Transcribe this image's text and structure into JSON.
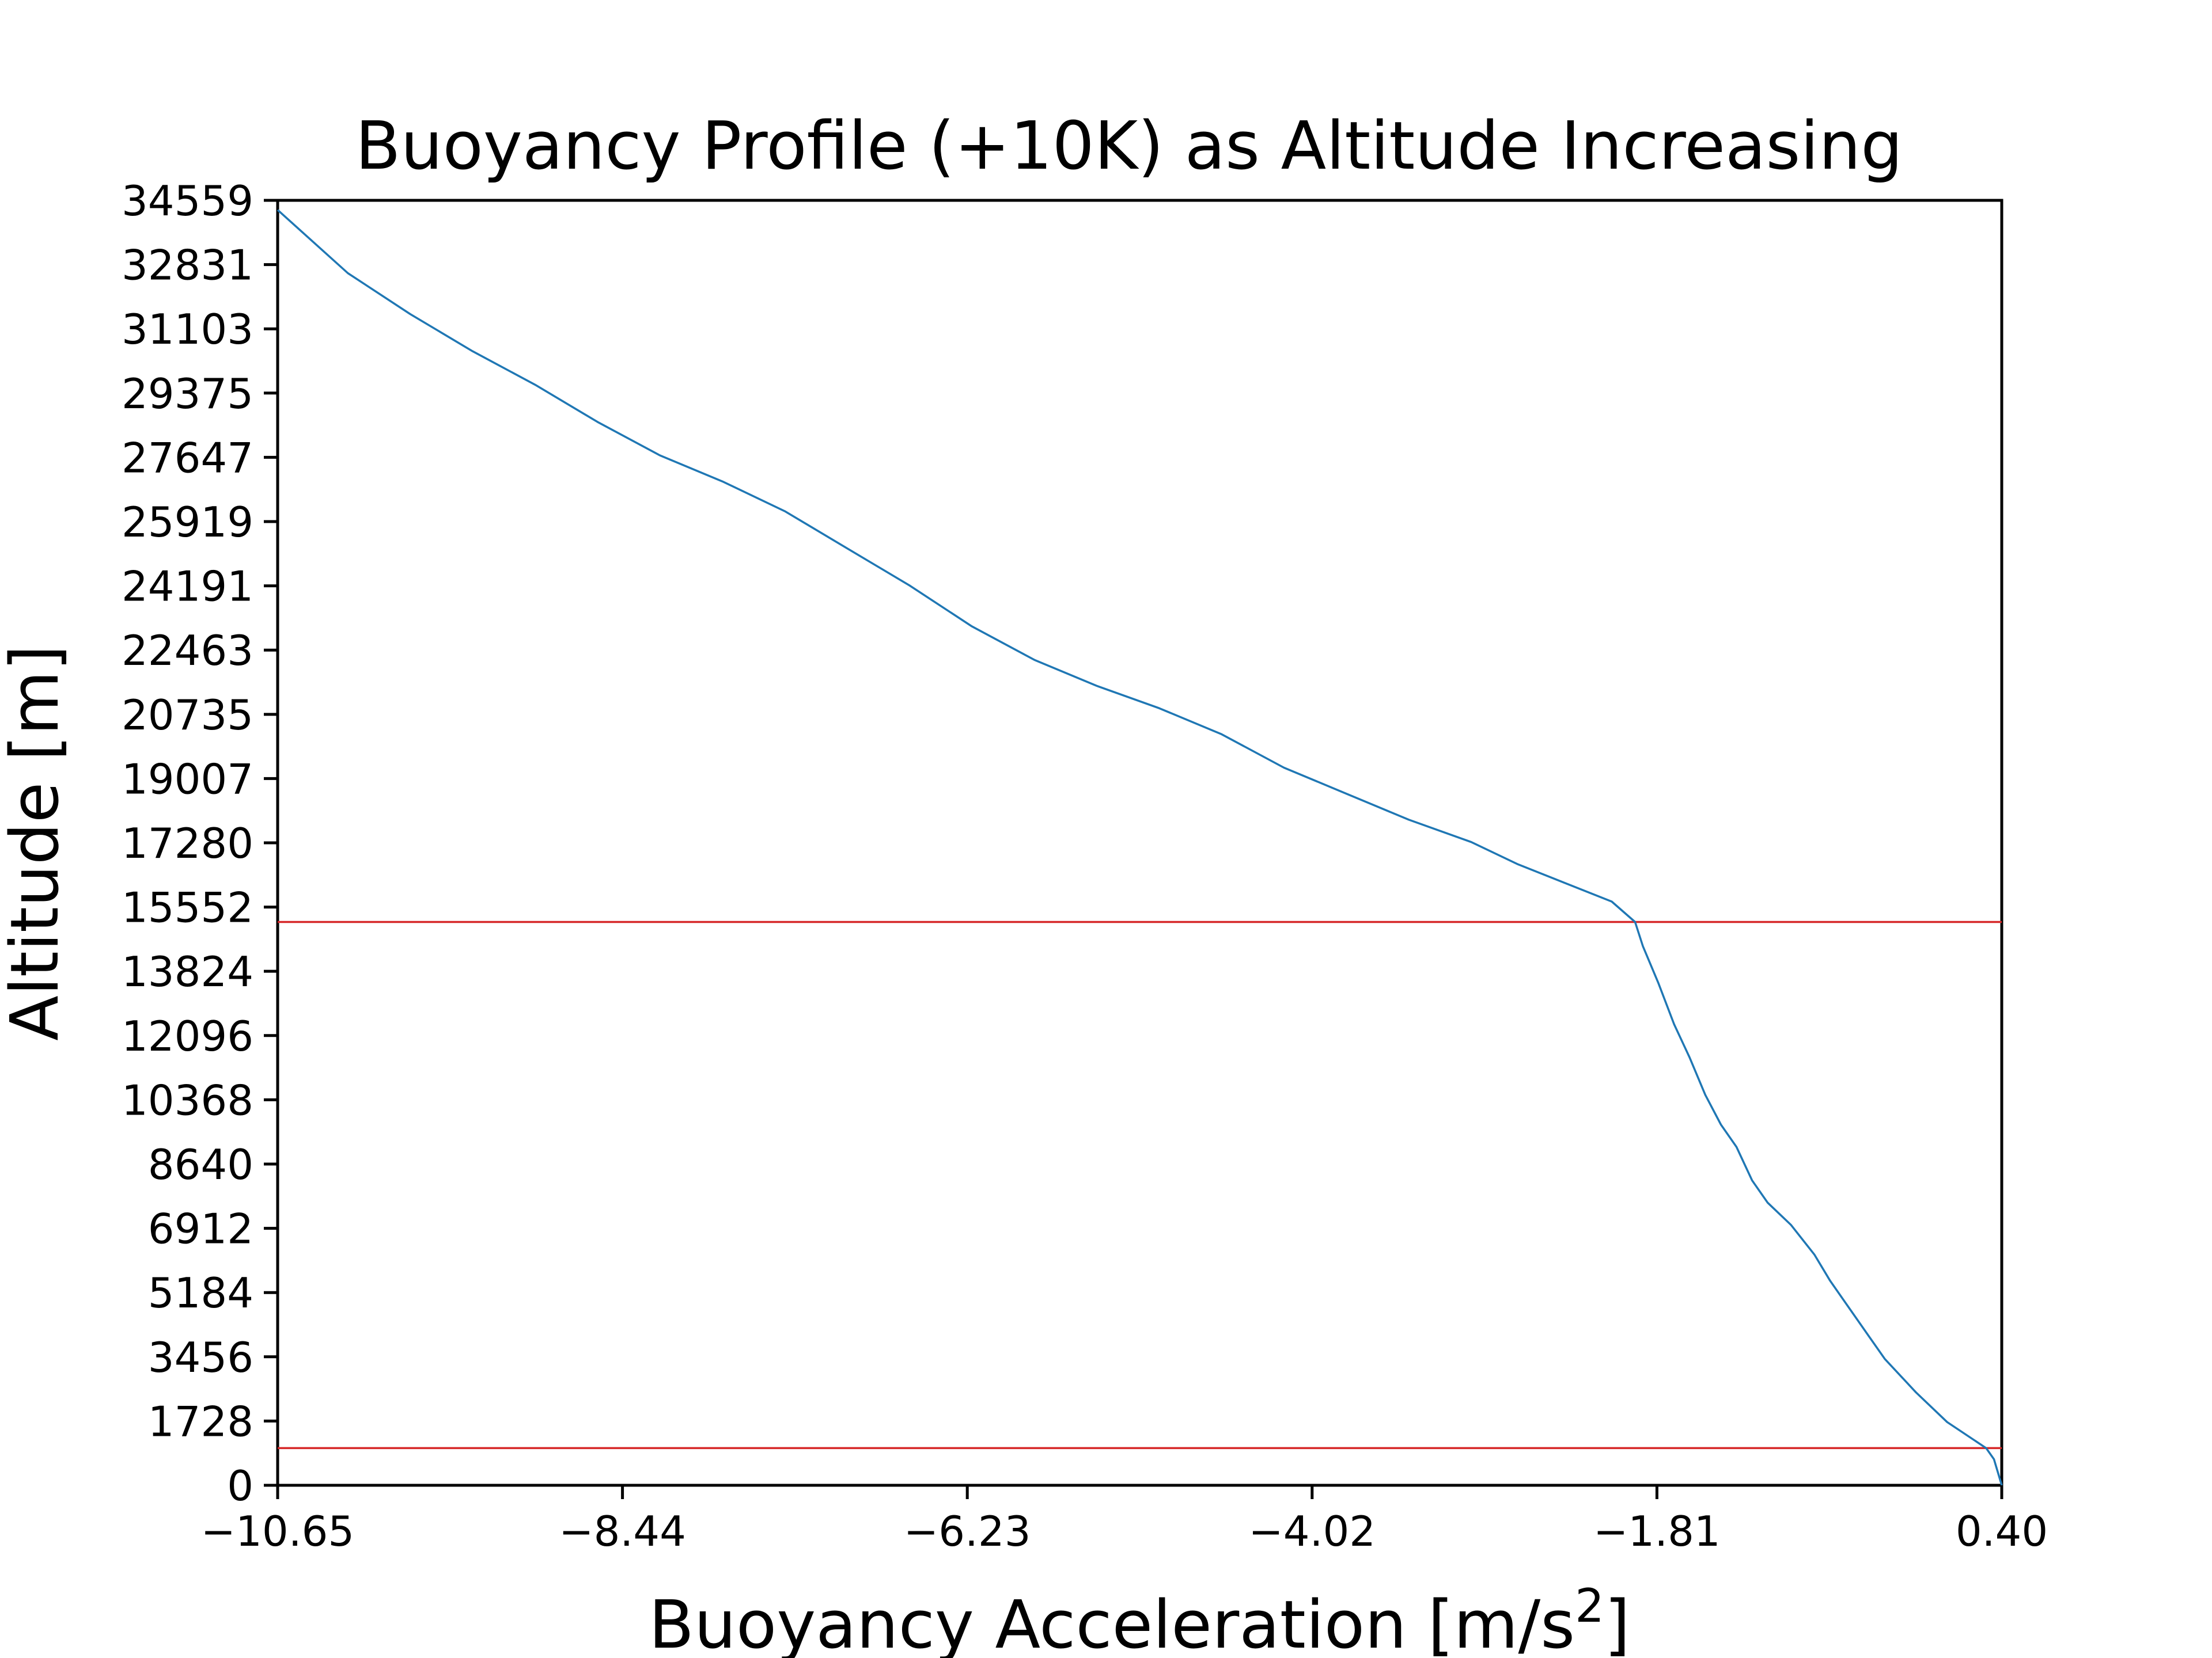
{
  "chart_data": {
    "type": "line",
    "title": "Buoyancy Profile (+10K) as Altitude Increasing",
    "xlabel": "Buoyancy Acceleration [m/s",
    "xlabel_superscript": "2",
    "xlabel_suffix": "]",
    "ylabel": "Altitude [m]",
    "xlim": [
      -10.65,
      0.4
    ],
    "ylim": [
      0,
      34559
    ],
    "xticks": [
      -10.65,
      -8.44,
      -6.23,
      -4.02,
      -1.81,
      0.4
    ],
    "xtick_labels": [
      "−10.65",
      "−8.44",
      "−6.23",
      "−4.02",
      "−1.81",
      "0.40"
    ],
    "yticks": [
      0,
      1728,
      3456,
      5184,
      6912,
      8640,
      10368,
      12096,
      13824,
      15552,
      17280,
      19007,
      20735,
      22463,
      24191,
      25919,
      27647,
      29375,
      31103,
      32831,
      34559
    ],
    "ytick_labels": [
      "0",
      "1728",
      "3456",
      "5184",
      "6912",
      "8640",
      "10368",
      "12096",
      "13824",
      "15552",
      "17280",
      "19007",
      "20735",
      "22463",
      "24191",
      "25919",
      "27647",
      "29375",
      "31103",
      "32831",
      "34559"
    ],
    "hlines": [
      {
        "y": 15150,
        "color": "#d62728"
      },
      {
        "y": 1000,
        "color": "#d62728"
      }
    ],
    "series": [
      {
        "color": "#1f77b4",
        "points": [
          [
            0.4,
            0
          ],
          [
            0.35,
            700
          ],
          [
            0.3,
            1000
          ],
          [
            0.05,
            1700
          ],
          [
            -0.15,
            2500
          ],
          [
            -0.35,
            3400
          ],
          [
            -0.45,
            4000
          ],
          [
            -0.6,
            4900
          ],
          [
            -0.7,
            5500
          ],
          [
            -0.8,
            6200
          ],
          [
            -0.95,
            7000
          ],
          [
            -1.1,
            7600
          ],
          [
            -1.2,
            8200
          ],
          [
            -1.3,
            9100
          ],
          [
            -1.4,
            9700
          ],
          [
            -1.5,
            10500
          ],
          [
            -1.6,
            11500
          ],
          [
            -1.7,
            12400
          ],
          [
            -1.8,
            13500
          ],
          [
            -1.9,
            14500
          ],
          [
            -1.95,
            15150
          ],
          [
            -2.1,
            15700
          ],
          [
            -2.4,
            16200
          ],
          [
            -2.7,
            16700
          ],
          [
            -3.0,
            17300
          ],
          [
            -3.4,
            17900
          ],
          [
            -3.8,
            18600
          ],
          [
            -4.2,
            19300
          ],
          [
            -4.6,
            20200
          ],
          [
            -5.0,
            20900
          ],
          [
            -5.4,
            21500
          ],
          [
            -5.8,
            22200
          ],
          [
            -6.2,
            23100
          ],
          [
            -6.6,
            24200
          ],
          [
            -7.0,
            25200
          ],
          [
            -7.4,
            26200
          ],
          [
            -7.8,
            27000
          ],
          [
            -8.2,
            27700
          ],
          [
            -8.6,
            28600
          ],
          [
            -9.0,
            29600
          ],
          [
            -9.4,
            30500
          ],
          [
            -9.8,
            31500
          ],
          [
            -10.2,
            32600
          ],
          [
            -10.65,
            34300
          ]
        ]
      }
    ]
  }
}
